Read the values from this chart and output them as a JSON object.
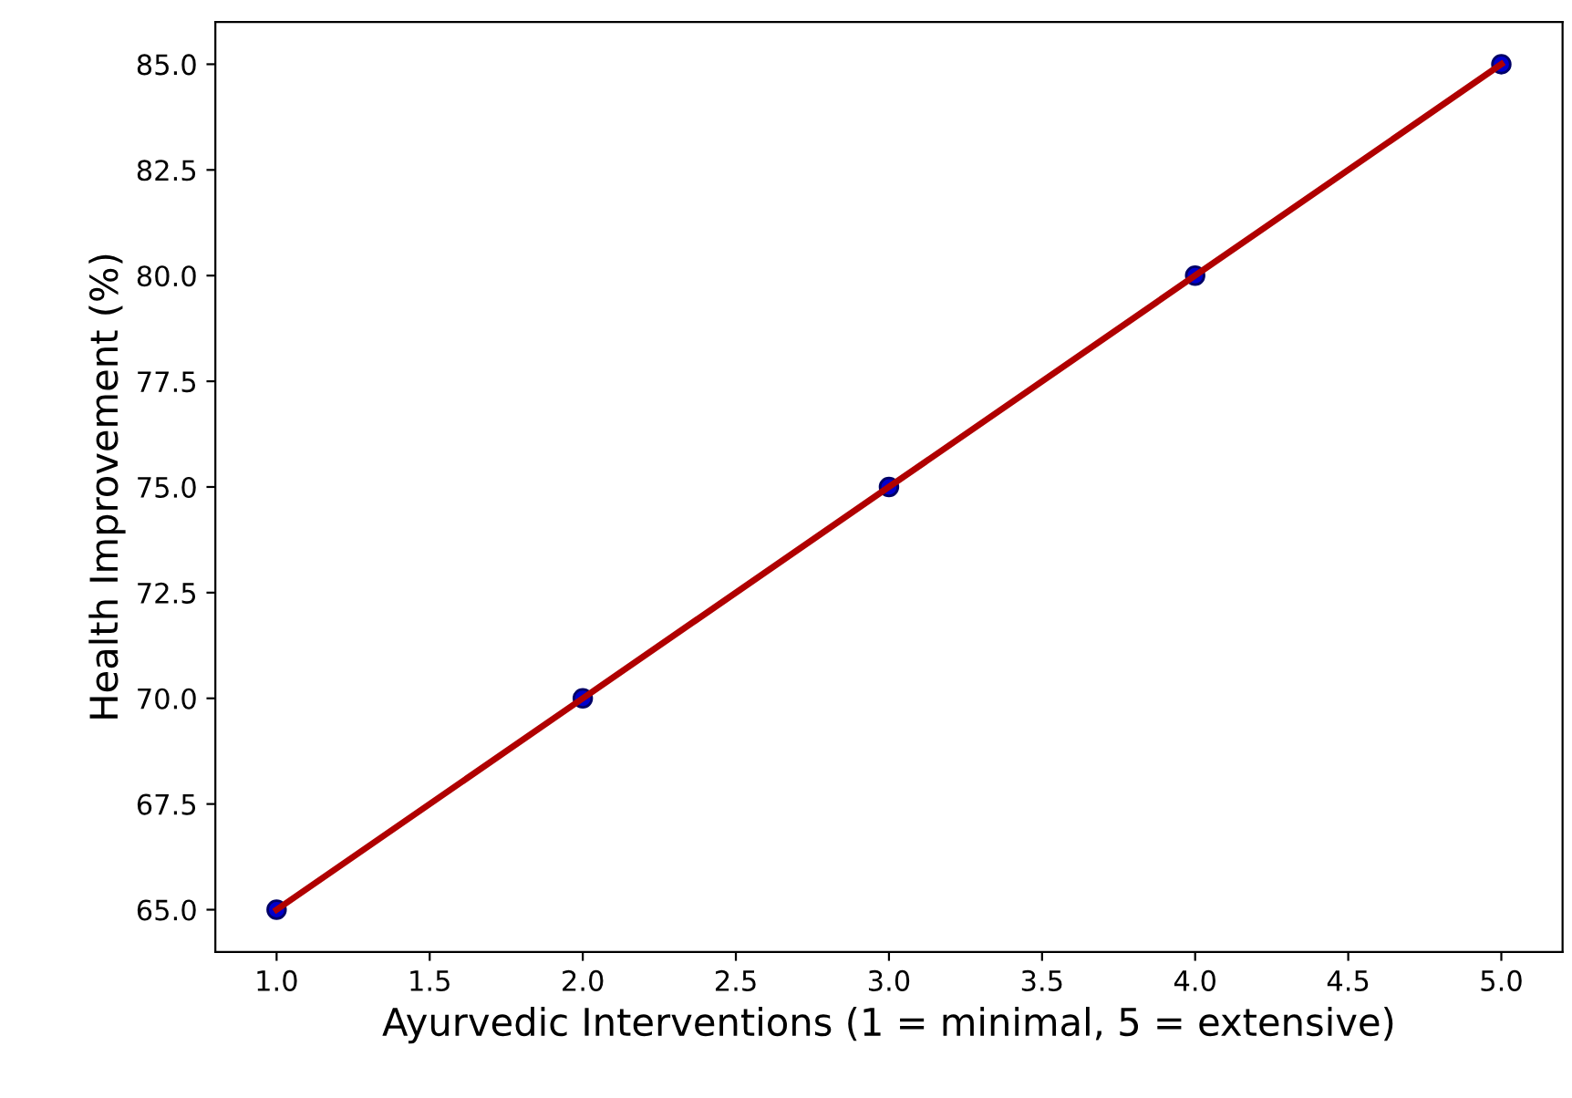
{
  "chart_data": {
    "type": "scatter",
    "xlabel": "Ayurvedic Interventions (1 = minimal, 5 = extensive)",
    "ylabel": "Health Improvement (%)",
    "x": [
      1,
      2,
      3,
      4,
      5
    ],
    "series": [
      {
        "color": "#0000cc",
        "values": [
          65,
          70,
          75,
          80,
          85
        ],
        "marker": "circle"
      },
      {
        "type": "line",
        "color": "#b00000",
        "values": [
          65,
          70,
          75,
          80,
          85
        ],
        "marker": "none",
        "line_style": "solid"
      }
    ],
    "xlim": [
      0.8,
      5.2
    ],
    "ylim": [
      64,
      86
    ],
    "xticks": [
      {
        "value": 1,
        "label": "1.0"
      },
      {
        "value": 1.5,
        "label": "1.5"
      },
      {
        "value": 2,
        "label": "2.0"
      },
      {
        "value": 2.5,
        "label": "2.5"
      },
      {
        "value": 3,
        "label": "3.0"
      },
      {
        "value": 3.5,
        "label": "3.5"
      },
      {
        "value": 4,
        "label": "4.0"
      },
      {
        "value": 4.5,
        "label": "4.5"
      },
      {
        "value": 5,
        "label": "5.0"
      }
    ],
    "yticks": [
      {
        "value": 65,
        "label": "65.0"
      },
      {
        "value": 67.5,
        "label": "67.5"
      },
      {
        "value": 70,
        "label": "70.0"
      },
      {
        "value": 72.5,
        "label": "72.5"
      },
      {
        "value": 75,
        "label": "75.0"
      },
      {
        "value": 77.5,
        "label": "77.5"
      },
      {
        "value": 80,
        "label": "80.0"
      },
      {
        "value": 82.5,
        "label": "82.5"
      },
      {
        "value": 85,
        "label": "85.0"
      }
    ],
    "grid": false,
    "legend": false
  }
}
